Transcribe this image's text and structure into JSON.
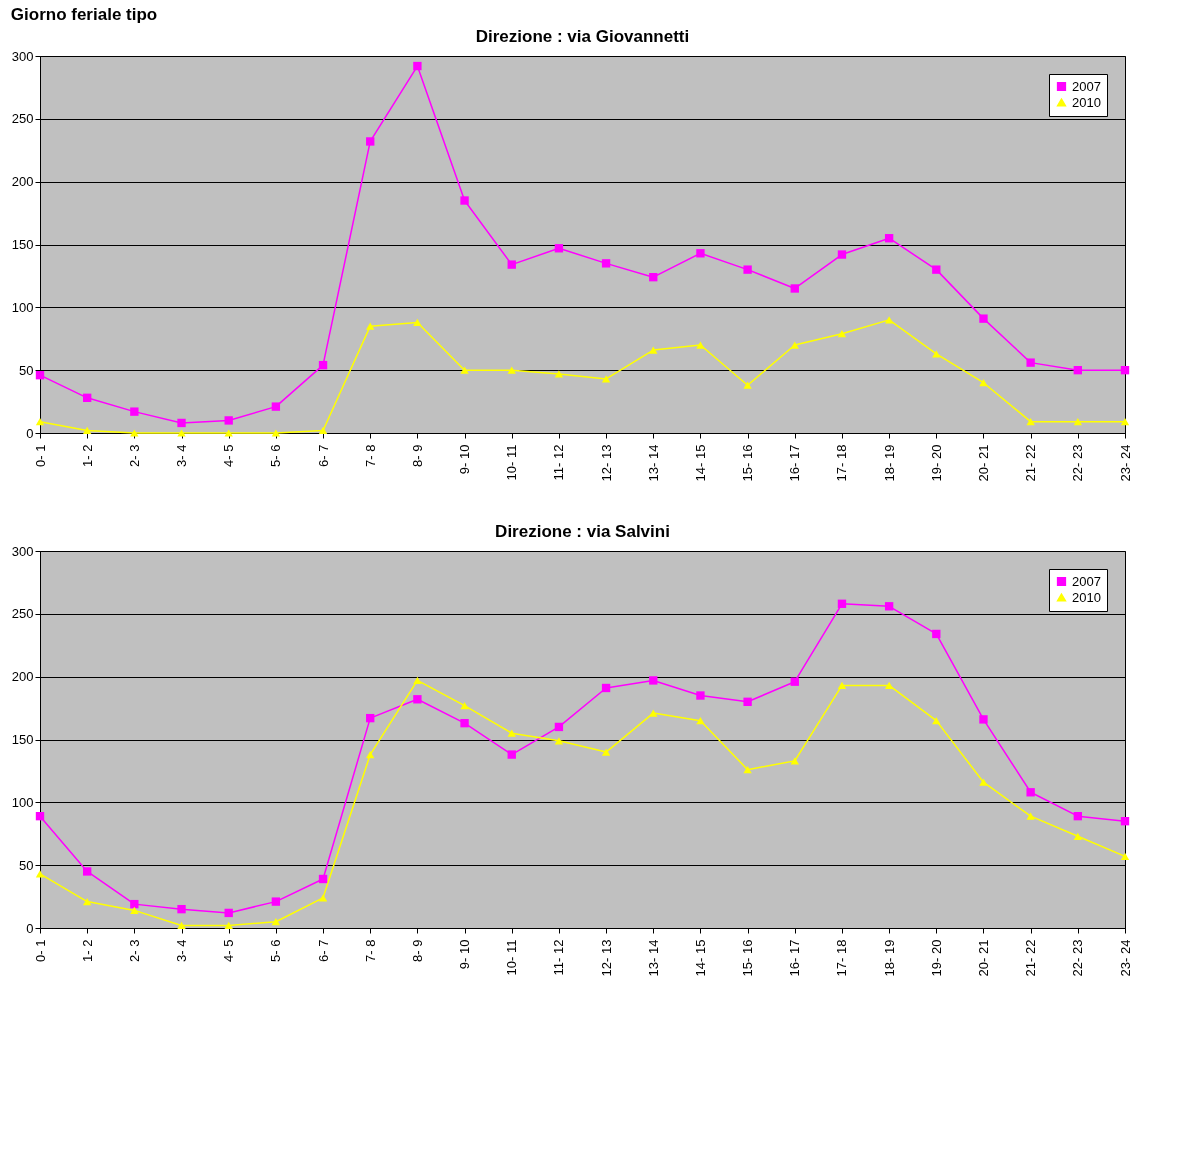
{
  "chart_data": [
    {
      "type": "line",
      "title": "Direzione : via Giovannetti",
      "annotations": [
        "Giorno feriale tipo"
      ],
      "categories": [
        "0- 1",
        "1- 2",
        "2- 3",
        "3- 4",
        "4- 5",
        "5- 6",
        "6- 7",
        "7- 8",
        "8- 9",
        "9- 10",
        "10- 11",
        "11- 12",
        "12- 13",
        "13- 14",
        "14- 15",
        "15- 16",
        "16- 17",
        "17- 18",
        "18- 19",
        "19- 20",
        "20- 21",
        "21- 22",
        "22- 23",
        "23- 24"
      ],
      "series": [
        {
          "name": "2007",
          "color": "#ff00ff",
          "marker": "square",
          "values": [
            46,
            28,
            17,
            8,
            10,
            21,
            54,
            232,
            292,
            185,
            134,
            147,
            135,
            124,
            143,
            130,
            115,
            142,
            155,
            130,
            91,
            56,
            50,
            50
          ]
        },
        {
          "name": "2010",
          "color": "#ffff00",
          "marker": "triangle",
          "values": [
            9,
            2,
            0,
            0,
            0,
            0,
            2,
            85,
            88,
            50,
            50,
            47,
            43,
            66,
            70,
            38,
            70,
            79,
            90,
            63,
            40,
            9,
            9,
            9
          ]
        }
      ],
      "ylim": [
        0,
        300
      ],
      "yticks": [
        0,
        50,
        100,
        150,
        200,
        250,
        300
      ],
      "grid": "y",
      "legend": "top right"
    },
    {
      "type": "line",
      "title": "Direzione : via Salvini",
      "categories": [
        "0- 1",
        "1- 2",
        "2- 3",
        "3- 4",
        "4- 5",
        "5- 6",
        "6- 7",
        "7- 8",
        "8- 9",
        "9- 10",
        "10- 11",
        "11- 12",
        "12- 13",
        "13- 14",
        "14- 15",
        "15- 16",
        "16- 17",
        "17- 18",
        "18- 19",
        "19- 20",
        "20- 21",
        "21- 22",
        "22- 23",
        "23- 24"
      ],
      "series": [
        {
          "name": "2007",
          "color": "#ff00ff",
          "marker": "square",
          "values": [
            89,
            45,
            19,
            15,
            12,
            21,
            39,
            167,
            182,
            163,
            138,
            160,
            191,
            197,
            185,
            180,
            196,
            258,
            256,
            234,
            166,
            108,
            89,
            85
          ]
        },
        {
          "name": "2010",
          "color": "#ffff00",
          "marker": "triangle",
          "values": [
            43,
            21,
            14,
            2,
            2,
            5,
            24,
            138,
            197,
            177,
            155,
            149,
            140,
            171,
            165,
            126,
            133,
            193,
            193,
            165,
            116,
            89,
            73,
            57
          ]
        }
      ],
      "ylim": [
        0,
        300
      ],
      "yticks": [
        0,
        50,
        100,
        150,
        200,
        250,
        300
      ],
      "grid": "y",
      "legend": "top right"
    }
  ]
}
